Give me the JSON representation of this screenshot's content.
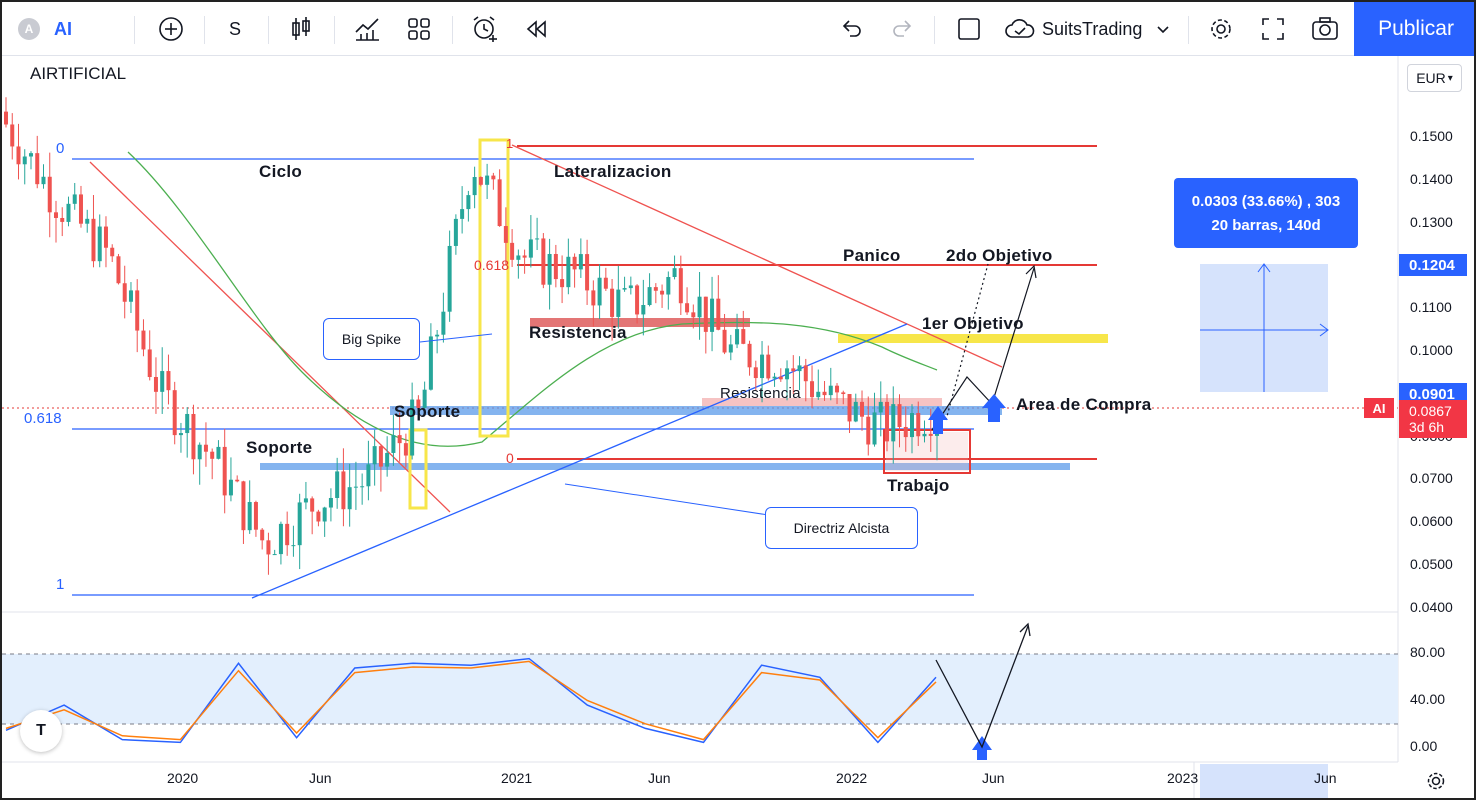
{
  "toolbar": {
    "symbol": "AI",
    "interval": "S",
    "account": "SuitsTrading",
    "publish_label": "Publicar"
  },
  "chart": {
    "symbol_title": "AIRTIFICIAL",
    "currency": "EUR",
    "symbol_flag": "AI",
    "countdown": "3d 6h"
  },
  "annotations": {
    "ciclo": "Ciclo",
    "lateralizacion": "Lateralizacion",
    "panico": "Panico",
    "objetivo2": "2do Objetivo",
    "objetivo1": "1er Objetivo",
    "resistencia_upper": "Resistencia",
    "resistencia_lower": "Resistencia",
    "soporte_upper": "Soporte",
    "soporte_lower": "Soporte",
    "area_compra": "Area de Compra",
    "trabajo": "Trabajo",
    "big_spike": "Big Spike",
    "directriz": "Directriz Alcista",
    "measure_line1": "0.0303 (33.66%) , 303",
    "measure_line2": "20 barras, 140d"
  },
  "fib_left": {
    "zero": "0",
    "level": "0.618",
    "one": "1"
  },
  "fib_right": {
    "one": "1",
    "level": "0.618",
    "zero": "0"
  },
  "price_tags": {
    "target": "0.1204",
    "last": "0.0901",
    "current": "0.0867"
  },
  "colors": {
    "up": "#26a69a",
    "down": "#ef5350",
    "accent": "#2962ff",
    "yellow": "#f7e64a",
    "red_line": "#e53935"
  },
  "chart_data": [
    {
      "type": "line",
      "title": "AIRTIFICIAL",
      "y_axis_labels": [
        "0.1500",
        "0.1400",
        "0.1300",
        "0.1200",
        "0.1100",
        "0.1000",
        "0.0900",
        "0.0800",
        "0.0700",
        "0.0600",
        "0.0500",
        "0.0400"
      ],
      "x_axis_labels": [
        "2020",
        "Jun",
        "2021",
        "Jun",
        "2022",
        "Jun",
        "2023",
        "Jun"
      ],
      "ylim": [
        0.04,
        0.16
      ],
      "series": [
        {
          "x": [
            "2019-08",
            "2019-10",
            "2019-12",
            "2020-02",
            "2020-03",
            "2020-05",
            "2020-08",
            "2020-10",
            "2020-12",
            "2021-01",
            "2021-03",
            "2021-05",
            "2021-07",
            "2021-09",
            "2021-11",
            "2022-01",
            "2022-02",
            "2022-03",
            "2022-04"
          ],
          "values": [
            0.153,
            0.135,
            0.122,
            0.09,
            0.075,
            0.055,
            0.065,
            0.07,
            0.085,
            0.145,
            0.122,
            0.118,
            0.11,
            0.118,
            0.1,
            0.098,
            0.088,
            0.082,
            0.0867
          ]
        }
      ]
    },
    {
      "type": "line",
      "title": "Stochastic",
      "y_axis_labels": [
        "80.00",
        "40.00",
        "0.00"
      ],
      "ylim": [
        0,
        100
      ],
      "series": [
        {
          "x": [
            "2019-08",
            "2019-10",
            "2019-12",
            "2020-02",
            "2020-04",
            "2020-06",
            "2020-08",
            "2020-10",
            "2020-12",
            "2021-02",
            "2021-04",
            "2021-06",
            "2021-08",
            "2021-10",
            "2021-12",
            "2022-02",
            "2022-04"
          ],
          "values": [
            18,
            45,
            8,
            5,
            90,
            10,
            85,
            90,
            88,
            95,
            45,
            20,
            5,
            88,
            75,
            5,
            75
          ]
        },
        {
          "x": [
            "2019-08",
            "2019-10",
            "2019-12",
            "2020-02",
            "2020-04",
            "2020-06",
            "2020-08",
            "2020-10",
            "2020-12",
            "2021-02",
            "2021-04",
            "2021-06",
            "2021-08",
            "2021-10",
            "2021-12",
            "2022-02",
            "2022-04"
          ],
          "values": [
            20,
            40,
            12,
            8,
            82,
            15,
            80,
            86,
            85,
            92,
            50,
            25,
            8,
            80,
            72,
            10,
            70
          ]
        }
      ]
    }
  ]
}
